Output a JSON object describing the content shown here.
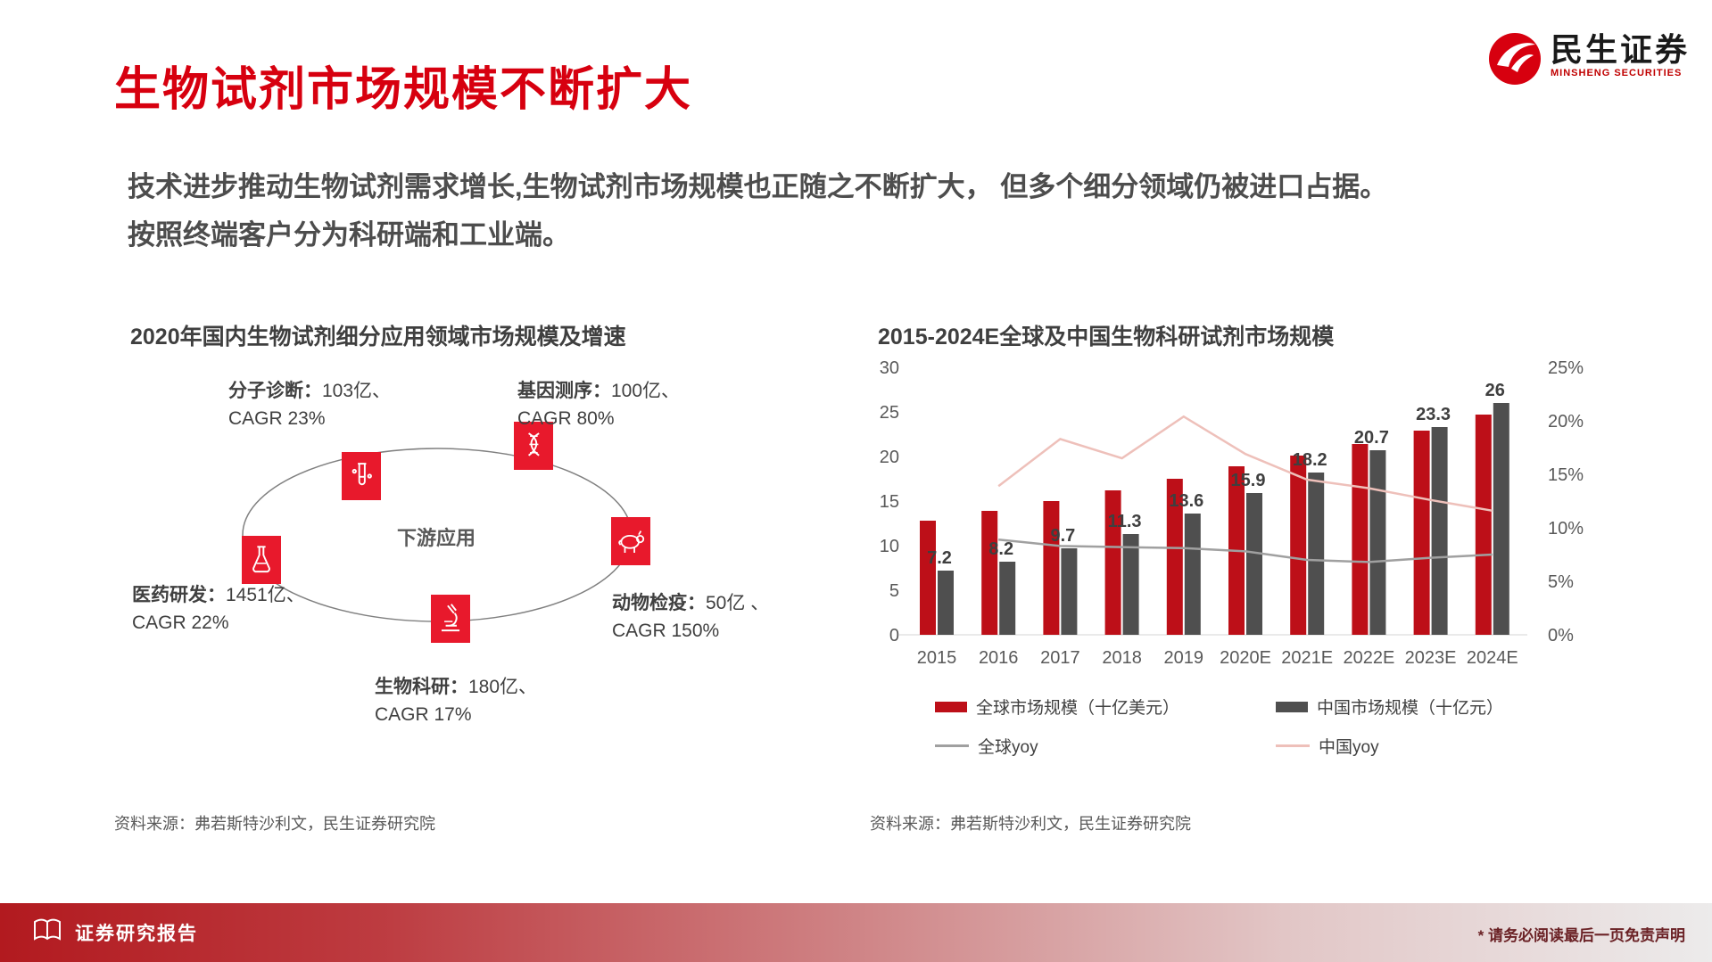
{
  "slide": {
    "title": "生物试剂市场规模不断扩大",
    "body_line1": "技术进步推动生物试剂需求增长,生物试剂市场规模也正随之不断扩大， 但多个细分领域仍被进口占据。",
    "body_line2": "按照终端客户分为科研端和工业端。",
    "logo": {
      "cn": "民生证券",
      "en": "MINSHENG SECURITIES"
    },
    "footer": {
      "report_label": "证券研究报告",
      "disclaimer": "* 请务必阅读最后一页免责声明"
    }
  },
  "left_panel": {
    "title": "2020年国内生物试剂细分应用领域市场规模及增速",
    "center_label": "下游应用",
    "source": "资料来源：弗若斯特沙利文，民生证券研究院",
    "nodes": [
      {
        "label": "分子诊断：",
        "value": "103亿、",
        "cagr": "CAGR 23%",
        "icon": "molecular-diagnosis-icon"
      },
      {
        "label": "基因测序：",
        "value": "100亿、",
        "cagr": "CAGR 80%",
        "icon": "gene-sequencing-icon"
      },
      {
        "label": "医药研发：",
        "value": "1451亿、",
        "cagr": "CAGR 22%",
        "icon": "pharma-flask-icon"
      },
      {
        "label": "动物检疫：",
        "value": "50亿 、",
        "cagr": "CAGR 150%",
        "icon": "animal-quarantine-icon"
      },
      {
        "label": "生物科研：",
        "value": "180亿、",
        "cagr": "CAGR 17%",
        "icon": "microscope-icon"
      }
    ]
  },
  "right_panel": {
    "title": "2015-2024E全球及中国生物科研试剂市场规模",
    "source": "资料来源：弗若斯特沙利文，民生证券研究院"
  },
  "chart_data": {
    "type": "bar",
    "title": "2015-2024E全球及中国生物科研试剂市场规模",
    "categories": [
      "2015",
      "2016",
      "2017",
      "2018",
      "2019",
      "2020E",
      "2021E",
      "2022E",
      "2023E",
      "2024E"
    ],
    "series": [
      {
        "name": "全球市场规模（十亿美元）",
        "type": "bar",
        "axis": "left",
        "color": "#bd0f18",
        "values": [
          12.8,
          13.9,
          15.0,
          16.2,
          17.5,
          18.9,
          20.1,
          21.4,
          22.9,
          24.7
        ]
      },
      {
        "name": "中国市场规模（十亿元）",
        "type": "bar",
        "axis": "left",
        "color": "#4f4f4f",
        "values": [
          7.2,
          8.2,
          9.7,
          11.3,
          13.6,
          15.9,
          18.2,
          20.7,
          23.3,
          26
        ],
        "labels": [
          "7.2",
          "8.2",
          "9.7",
          "11.3",
          "13.6",
          "15.9",
          "18.2",
          "20.7",
          "23.3",
          "26"
        ]
      },
      {
        "name": "全球yoy",
        "type": "line",
        "axis": "right",
        "color": "#a0a0a0",
        "values": [
          null,
          8.9,
          8.3,
          8.2,
          8.1,
          7.8,
          7.0,
          6.8,
          7.2,
          7.5
        ]
      },
      {
        "name": "中国yoy",
        "type": "line",
        "axis": "right",
        "color": "#eec0ba",
        "values": [
          null,
          13.9,
          18.3,
          16.5,
          20.4,
          16.9,
          14.5,
          13.7,
          12.6,
          11.6
        ]
      }
    ],
    "left_axis": {
      "min": 0,
      "max": 30,
      "ticks": [
        0,
        5,
        10,
        15,
        20,
        25,
        30
      ]
    },
    "right_axis": {
      "min": 0,
      "max": 25,
      "ticks": [
        "0%",
        "5%",
        "10%",
        "15%",
        "20%",
        "25%"
      ]
    },
    "grid": false,
    "legend_position": "bottom"
  }
}
